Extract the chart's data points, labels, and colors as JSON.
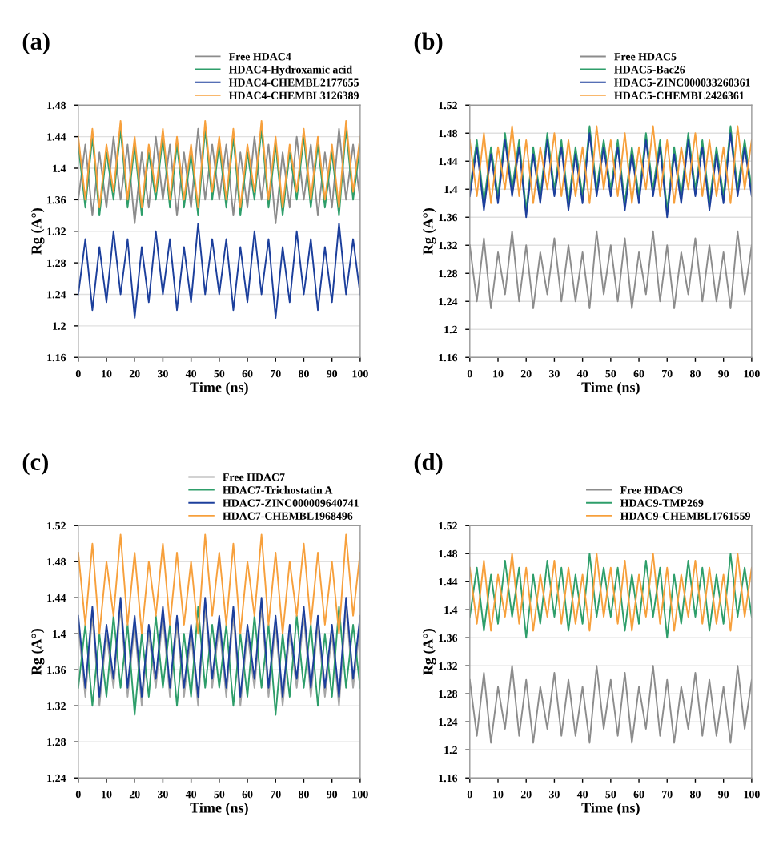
{
  "chart_data": [
    {
      "type": "line",
      "title": "(a)",
      "xlabel": "Time (ns)",
      "ylabel": "Rg (A°)",
      "grid": "y",
      "legend": "top right",
      "xlim": [
        0,
        100
      ],
      "xticks": [
        0,
        10,
        20,
        30,
        40,
        50,
        60,
        70,
        80,
        90,
        100
      ],
      "ylim": [
        1.16,
        1.48
      ],
      "yticks": [
        1.16,
        1.2,
        1.24,
        1.28,
        1.32,
        1.36,
        1.4,
        1.44,
        1.48
      ],
      "x": [
        0,
        2.5,
        5,
        7.5,
        10,
        12.5,
        15,
        17.5,
        20,
        22.5,
        25,
        27.5,
        30,
        32.5,
        35,
        37.5,
        40,
        42.5,
        45,
        47.5,
        50,
        52.5,
        55,
        57.5,
        60,
        62.5,
        65,
        67.5,
        70,
        72.5,
        75,
        77.5,
        80,
        82.5,
        85,
        87.5,
        90,
        92.5,
        95,
        97.5,
        100
      ],
      "series": [
        {
          "name": "Free HDAC4",
          "color": "#8c8c8c",
          "values": [
            1.36,
            1.43,
            1.34,
            1.42,
            1.35,
            1.44,
            1.36,
            1.43,
            1.33,
            1.42,
            1.35,
            1.44,
            1.36,
            1.43,
            1.34,
            1.42,
            1.35,
            1.45,
            1.36,
            1.43,
            1.36,
            1.43,
            1.34,
            1.42,
            1.35,
            1.44,
            1.36,
            1.43,
            1.33,
            1.42,
            1.35,
            1.44,
            1.36,
            1.43,
            1.34,
            1.42,
            1.35,
            1.45,
            1.36,
            1.43,
            1.36
          ]
        },
        {
          "name": "HDAC4-Hydroxamic acid",
          "color": "#2e9e6a",
          "values": [
            1.43,
            1.35,
            1.44,
            1.34,
            1.42,
            1.36,
            1.45,
            1.35,
            1.43,
            1.34,
            1.42,
            1.36,
            1.44,
            1.35,
            1.43,
            1.35,
            1.42,
            1.34,
            1.45,
            1.36,
            1.43,
            1.35,
            1.44,
            1.34,
            1.42,
            1.36,
            1.45,
            1.35,
            1.43,
            1.34,
            1.42,
            1.36,
            1.44,
            1.35,
            1.43,
            1.35,
            1.42,
            1.34,
            1.45,
            1.36,
            1.43
          ]
        },
        {
          "name": "HDAC4-CHEMBL2177655",
          "color": "#1c3f9c",
          "values": [
            1.24,
            1.31,
            1.22,
            1.3,
            1.23,
            1.32,
            1.24,
            1.31,
            1.21,
            1.3,
            1.23,
            1.32,
            1.24,
            1.31,
            1.22,
            1.3,
            1.23,
            1.33,
            1.24,
            1.31,
            1.24,
            1.31,
            1.22,
            1.3,
            1.23,
            1.32,
            1.24,
            1.31,
            1.21,
            1.3,
            1.23,
            1.32,
            1.24,
            1.31,
            1.22,
            1.3,
            1.23,
            1.33,
            1.24,
            1.31,
            1.24
          ]
        },
        {
          "name": "HDAC4-CHEMBL3126389",
          "color": "#f7a03c",
          "values": [
            1.44,
            1.36,
            1.45,
            1.35,
            1.43,
            1.37,
            1.46,
            1.36,
            1.44,
            1.35,
            1.43,
            1.37,
            1.45,
            1.36,
            1.44,
            1.36,
            1.43,
            1.35,
            1.46,
            1.37,
            1.44,
            1.36,
            1.45,
            1.35,
            1.43,
            1.37,
            1.46,
            1.36,
            1.44,
            1.35,
            1.43,
            1.37,
            1.45,
            1.36,
            1.44,
            1.36,
            1.43,
            1.35,
            1.46,
            1.37,
            1.44
          ]
        }
      ]
    },
    {
      "type": "line",
      "title": "(b)",
      "xlabel": "Time (ns)",
      "ylabel": "Rg (A°)",
      "grid": "y",
      "legend": "top right",
      "xlim": [
        0,
        100
      ],
      "xticks": [
        0,
        10,
        20,
        30,
        40,
        50,
        60,
        70,
        80,
        90,
        100
      ],
      "ylim": [
        1.16,
        1.52
      ],
      "yticks": [
        1.16,
        1.2,
        1.24,
        1.28,
        1.32,
        1.36,
        1.4,
        1.44,
        1.48,
        1.52
      ],
      "x": [
        0,
        2.5,
        5,
        7.5,
        10,
        12.5,
        15,
        17.5,
        20,
        22.5,
        25,
        27.5,
        30,
        32.5,
        35,
        37.5,
        40,
        42.5,
        45,
        47.5,
        50,
        52.5,
        55,
        57.5,
        60,
        62.5,
        65,
        67.5,
        70,
        72.5,
        75,
        77.5,
        80,
        82.5,
        85,
        87.5,
        90,
        92.5,
        95,
        97.5,
        100
      ],
      "series": [
        {
          "name": "Free HDAC5",
          "color": "#8c8c8c",
          "values": [
            1.32,
            1.24,
            1.33,
            1.23,
            1.31,
            1.25,
            1.34,
            1.24,
            1.32,
            1.23,
            1.31,
            1.25,
            1.33,
            1.24,
            1.32,
            1.24,
            1.31,
            1.23,
            1.34,
            1.25,
            1.32,
            1.24,
            1.33,
            1.23,
            1.31,
            1.25,
            1.34,
            1.24,
            1.32,
            1.23,
            1.31,
            1.25,
            1.33,
            1.24,
            1.32,
            1.24,
            1.31,
            1.23,
            1.34,
            1.25,
            1.32
          ]
        },
        {
          "name": "HDAC5-Bac26",
          "color": "#2e9e6a",
          "values": [
            1.4,
            1.47,
            1.38,
            1.46,
            1.39,
            1.48,
            1.4,
            1.47,
            1.37,
            1.46,
            1.39,
            1.48,
            1.4,
            1.47,
            1.38,
            1.46,
            1.39,
            1.49,
            1.4,
            1.47,
            1.4,
            1.47,
            1.38,
            1.46,
            1.39,
            1.48,
            1.4,
            1.47,
            1.37,
            1.46,
            1.39,
            1.48,
            1.4,
            1.47,
            1.38,
            1.46,
            1.39,
            1.49,
            1.4,
            1.47,
            1.4
          ]
        },
        {
          "name": "HDAC5-ZINC000033260361",
          "color": "#1c3f9c",
          "values": [
            1.39,
            1.46,
            1.37,
            1.45,
            1.38,
            1.47,
            1.39,
            1.46,
            1.36,
            1.45,
            1.38,
            1.47,
            1.39,
            1.46,
            1.37,
            1.45,
            1.38,
            1.48,
            1.39,
            1.46,
            1.39,
            1.46,
            1.37,
            1.45,
            1.38,
            1.47,
            1.39,
            1.46,
            1.36,
            1.45,
            1.38,
            1.47,
            1.39,
            1.46,
            1.37,
            1.45,
            1.38,
            1.48,
            1.39,
            1.46,
            1.39
          ]
        },
        {
          "name": "HDAC5-CHEMBL2426361",
          "color": "#f7a03c",
          "values": [
            1.47,
            1.39,
            1.48,
            1.38,
            1.46,
            1.4,
            1.49,
            1.39,
            1.47,
            1.38,
            1.46,
            1.4,
            1.48,
            1.39,
            1.47,
            1.39,
            1.46,
            1.38,
            1.49,
            1.4,
            1.47,
            1.39,
            1.48,
            1.38,
            1.46,
            1.4,
            1.49,
            1.39,
            1.47,
            1.38,
            1.46,
            1.4,
            1.48,
            1.39,
            1.47,
            1.39,
            1.46,
            1.38,
            1.49,
            1.4,
            1.47
          ]
        }
      ]
    },
    {
      "type": "line",
      "title": "(c)",
      "xlabel": "Time (ns)",
      "ylabel": "Rg (A°)",
      "grid": "y",
      "legend": "top right",
      "xlim": [
        0,
        100
      ],
      "xticks": [
        0,
        10,
        20,
        30,
        40,
        50,
        60,
        70,
        80,
        90,
        100
      ],
      "ylim": [
        1.24,
        1.52
      ],
      "yticks": [
        1.24,
        1.28,
        1.32,
        1.36,
        1.4,
        1.44,
        1.48,
        1.52
      ],
      "x": [
        0,
        2.5,
        5,
        7.5,
        10,
        12.5,
        15,
        17.5,
        20,
        22.5,
        25,
        27.5,
        30,
        32.5,
        35,
        37.5,
        40,
        42.5,
        45,
        47.5,
        50,
        52.5,
        55,
        57.5,
        60,
        62.5,
        65,
        67.5,
        70,
        72.5,
        75,
        77.5,
        80,
        82.5,
        85,
        87.5,
        90,
        92.5,
        95,
        97.5,
        100
      ],
      "series": [
        {
          "name": "Free HDAC7",
          "color": "#a6a6a6",
          "values": [
            1.41,
            1.33,
            1.42,
            1.32,
            1.4,
            1.34,
            1.43,
            1.33,
            1.41,
            1.32,
            1.4,
            1.34,
            1.42,
            1.33,
            1.41,
            1.33,
            1.4,
            1.32,
            1.43,
            1.34,
            1.41,
            1.33,
            1.42,
            1.32,
            1.4,
            1.34,
            1.43,
            1.33,
            1.41,
            1.32,
            1.4,
            1.34,
            1.42,
            1.33,
            1.41,
            1.33,
            1.4,
            1.32,
            1.43,
            1.34,
            1.41
          ]
        },
        {
          "name": "HDAC7-Trichostatin A",
          "color": "#2e9e6a",
          "values": [
            1.34,
            1.41,
            1.32,
            1.4,
            1.33,
            1.42,
            1.34,
            1.41,
            1.31,
            1.4,
            1.33,
            1.42,
            1.34,
            1.41,
            1.32,
            1.4,
            1.33,
            1.43,
            1.34,
            1.41,
            1.34,
            1.41,
            1.32,
            1.4,
            1.33,
            1.42,
            1.34,
            1.41,
            1.31,
            1.4,
            1.33,
            1.42,
            1.34,
            1.41,
            1.32,
            1.4,
            1.33,
            1.43,
            1.34,
            1.41,
            1.34
          ]
        },
        {
          "name": "HDAC7-ZINC000009640741",
          "color": "#1c3f9c",
          "values": [
            1.42,
            1.34,
            1.43,
            1.33,
            1.41,
            1.35,
            1.44,
            1.34,
            1.42,
            1.33,
            1.41,
            1.35,
            1.43,
            1.34,
            1.42,
            1.34,
            1.41,
            1.33,
            1.44,
            1.35,
            1.42,
            1.34,
            1.43,
            1.33,
            1.41,
            1.35,
            1.44,
            1.34,
            1.42,
            1.33,
            1.41,
            1.35,
            1.43,
            1.34,
            1.42,
            1.34,
            1.41,
            1.33,
            1.44,
            1.35,
            1.42
          ]
        },
        {
          "name": "HDAC7-CHEMBL1968496",
          "color": "#f7a03c",
          "values": [
            1.49,
            1.41,
            1.5,
            1.4,
            1.48,
            1.42,
            1.51,
            1.41,
            1.49,
            1.4,
            1.48,
            1.42,
            1.5,
            1.41,
            1.49,
            1.41,
            1.48,
            1.4,
            1.51,
            1.42,
            1.49,
            1.41,
            1.5,
            1.4,
            1.48,
            1.42,
            1.51,
            1.41,
            1.49,
            1.4,
            1.48,
            1.42,
            1.5,
            1.41,
            1.49,
            1.41,
            1.48,
            1.4,
            1.51,
            1.42,
            1.49
          ]
        }
      ]
    },
    {
      "type": "line",
      "title": "(d)",
      "xlabel": "Time (ns)",
      "ylabel": "Rg (A°)",
      "grid": "y",
      "legend": "top right",
      "xlim": [
        0,
        100
      ],
      "xticks": [
        0,
        10,
        20,
        30,
        40,
        50,
        60,
        70,
        80,
        90,
        100
      ],
      "ylim": [
        1.16,
        1.52
      ],
      "yticks": [
        1.16,
        1.2,
        1.24,
        1.28,
        1.32,
        1.36,
        1.4,
        1.44,
        1.48,
        1.52
      ],
      "x": [
        0,
        2.5,
        5,
        7.5,
        10,
        12.5,
        15,
        17.5,
        20,
        22.5,
        25,
        27.5,
        30,
        32.5,
        35,
        37.5,
        40,
        42.5,
        45,
        47.5,
        50,
        52.5,
        55,
        57.5,
        60,
        62.5,
        65,
        67.5,
        70,
        72.5,
        75,
        77.5,
        80,
        82.5,
        85,
        87.5,
        90,
        92.5,
        95,
        97.5,
        100
      ],
      "series": [
        {
          "name": "Free HDAC9",
          "color": "#8c8c8c",
          "values": [
            1.3,
            1.22,
            1.31,
            1.21,
            1.29,
            1.23,
            1.32,
            1.22,
            1.3,
            1.21,
            1.29,
            1.23,
            1.31,
            1.22,
            1.3,
            1.22,
            1.29,
            1.21,
            1.32,
            1.23,
            1.3,
            1.22,
            1.31,
            1.21,
            1.29,
            1.23,
            1.32,
            1.22,
            1.3,
            1.21,
            1.29,
            1.23,
            1.31,
            1.22,
            1.3,
            1.22,
            1.29,
            1.21,
            1.32,
            1.23,
            1.3
          ]
        },
        {
          "name": "HDAC9-TMP269",
          "color": "#2e9e6a",
          "values": [
            1.39,
            1.46,
            1.37,
            1.45,
            1.38,
            1.47,
            1.39,
            1.46,
            1.36,
            1.45,
            1.38,
            1.47,
            1.39,
            1.46,
            1.37,
            1.45,
            1.38,
            1.48,
            1.39,
            1.46,
            1.39,
            1.46,
            1.37,
            1.45,
            1.38,
            1.47,
            1.39,
            1.46,
            1.36,
            1.45,
            1.38,
            1.47,
            1.39,
            1.46,
            1.37,
            1.45,
            1.38,
            1.48,
            1.39,
            1.46,
            1.39
          ]
        },
        {
          "name": "HDAC9-CHEMBL1761559",
          "color": "#f7a03c",
          "values": [
            1.46,
            1.38,
            1.47,
            1.37,
            1.45,
            1.39,
            1.48,
            1.38,
            1.46,
            1.37,
            1.45,
            1.39,
            1.47,
            1.38,
            1.46,
            1.38,
            1.45,
            1.37,
            1.48,
            1.39,
            1.46,
            1.38,
            1.47,
            1.37,
            1.45,
            1.39,
            1.48,
            1.38,
            1.46,
            1.37,
            1.45,
            1.39,
            1.47,
            1.38,
            1.46,
            1.38,
            1.45,
            1.37,
            1.48,
            1.39,
            1.46
          ]
        }
      ]
    }
  ]
}
